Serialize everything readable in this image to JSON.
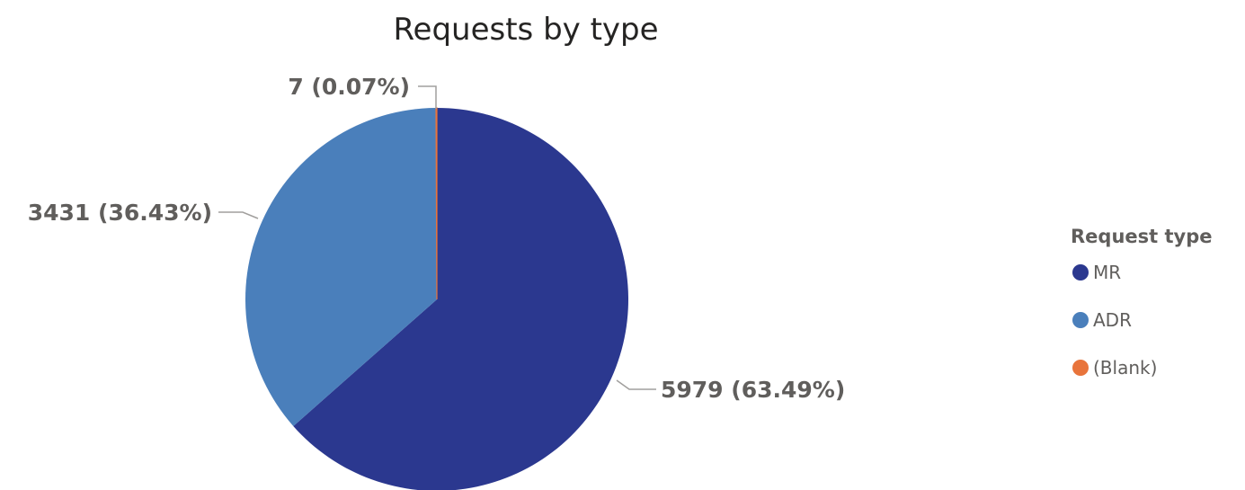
{
  "chart_data": {
    "type": "pie",
    "title": "Requests by type",
    "legend_title": "Request type",
    "legend_position": "right",
    "categories": [
      "MR",
      "ADR",
      "(Blank)"
    ],
    "values": [
      5979,
      3431,
      7
    ],
    "percentages": [
      "63.49%",
      "36.43%",
      "0.07%"
    ],
    "data_labels": [
      "5979 (63.49%)",
      "3431 (36.43%)",
      "7 (0.07%)"
    ],
    "colors": [
      "#2b388f",
      "#4a7fbb",
      "#e8743b"
    ],
    "start_angle": "12 o'clock",
    "direction": "clockwise"
  }
}
